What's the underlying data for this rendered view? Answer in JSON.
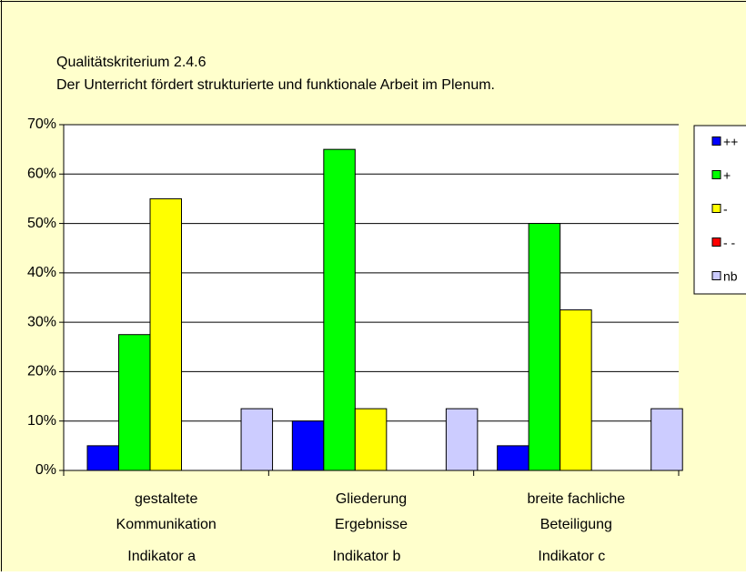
{
  "chart_data": {
    "type": "bar",
    "title": "Qualitätskriterium  2.4.6",
    "subtitle": "Der Unterricht fördert strukturierte und funktionale Arbeit im Plenum.",
    "categories": [
      [
        "gestaltete",
        "Kommunikation"
      ],
      [
        "Gliederung",
        "Ergebnisse"
      ],
      [
        "breite fachliche",
        "Beteiligung"
      ]
    ],
    "category_groups": [
      "Indikator a",
      "Indikator b",
      "Indikator c"
    ],
    "series": [
      {
        "name": "++",
        "color": "#0000ff",
        "values": [
          5,
          10,
          5
        ]
      },
      {
        "name": "+",
        "color": "#00ff00",
        "values": [
          27.5,
          65,
          50
        ]
      },
      {
        "name": "-",
        "color": "#ffff00",
        "values": [
          55,
          12.5,
          32.5
        ]
      },
      {
        "name": "- -",
        "color": "#ff0000",
        "values": [
          0,
          0,
          0
        ]
      },
      {
        "name": "nb",
        "color": "#ccccff",
        "values": [
          12.5,
          12.5,
          12.5
        ]
      }
    ],
    "ylim": [
      0,
      70
    ],
    "yticks": [
      {
        "value": 0,
        "label": "0%"
      },
      {
        "value": 10,
        "label": "10%"
      },
      {
        "value": 20,
        "label": "20%"
      },
      {
        "value": 30,
        "label": "30%"
      },
      {
        "value": 40,
        "label": "40%"
      },
      {
        "value": 50,
        "label": "50%"
      },
      {
        "value": 60,
        "label": "60%"
      },
      {
        "value": 70,
        "label": "70%"
      }
    ],
    "grid": true
  }
}
